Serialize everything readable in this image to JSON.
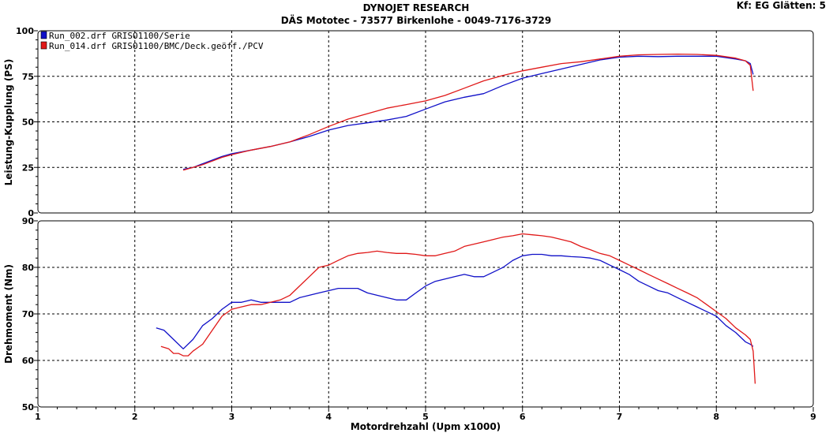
{
  "header": {
    "title": "DYNOJET RESEARCH",
    "subtitle": "DÄS Mototec - 73577 Birkenlohe  - 0049-7176-3729",
    "settings": "Kf: EG  Glätten: 5"
  },
  "colors": {
    "series_1": "#1010c8",
    "series_2": "#e01818"
  },
  "legend": [
    {
      "label": "Run_002.drf GRISO1100/Serie",
      "color": "#1010c8"
    },
    {
      "label": "Run_014.drf GRISO1100/BMC/Deck.geöff./PCV",
      "color": "#e01818"
    }
  ],
  "chart_data": [
    {
      "type": "line",
      "ylabel": "Leistung-Kupplung (PS)",
      "xlabel": "",
      "xlim": [
        1,
        9
      ],
      "ylim": [
        0,
        100
      ],
      "x_ticks": [
        1,
        2,
        3,
        4,
        5,
        6,
        7,
        8,
        9
      ],
      "y_ticks": [
        0,
        25,
        50,
        75,
        100
      ],
      "grid": true,
      "legend_position": "top-left",
      "series": [
        {
          "name": "Run_002.drf GRISO1100/Serie",
          "color": "#1010c8",
          "x": [
            2.5,
            2.6,
            2.7,
            2.8,
            2.9,
            3.0,
            3.2,
            3.4,
            3.6,
            3.8,
            4.0,
            4.2,
            4.4,
            4.6,
            4.8,
            5.0,
            5.2,
            5.4,
            5.6,
            5.8,
            6.0,
            6.2,
            6.4,
            6.6,
            6.8,
            7.0,
            7.2,
            7.4,
            7.6,
            7.8,
            8.0,
            8.2,
            8.3,
            8.35,
            8.38
          ],
          "y": [
            24,
            25,
            27,
            29,
            31,
            32.5,
            34.5,
            36.5,
            39,
            42,
            45.5,
            48,
            49.5,
            51,
            53,
            57,
            61,
            63.5,
            65.5,
            70,
            74,
            76.5,
            79,
            81.5,
            84,
            85.5,
            86,
            85.8,
            86,
            86,
            86,
            84.5,
            83.5,
            82,
            76
          ]
        },
        {
          "name": "Run_014.drf GRISO1100/BMC/Deck.geöff./PCV",
          "color": "#e01818",
          "x": [
            2.5,
            2.6,
            2.7,
            2.8,
            2.9,
            3.0,
            3.2,
            3.4,
            3.6,
            3.8,
            4.0,
            4.2,
            4.4,
            4.6,
            4.8,
            5.0,
            5.2,
            5.4,
            5.6,
            5.8,
            6.0,
            6.2,
            6.4,
            6.6,
            6.8,
            7.0,
            7.2,
            7.4,
            7.6,
            7.8,
            8.0,
            8.2,
            8.3,
            8.35,
            8.38
          ],
          "y": [
            23.5,
            25,
            26.5,
            28.5,
            30.5,
            32,
            34.5,
            36.5,
            39,
            43,
            47.5,
            51.5,
            54.5,
            57.5,
            59.5,
            61.5,
            64.5,
            68.5,
            72.5,
            75.5,
            78,
            80,
            82,
            83,
            84.5,
            86,
            86.8,
            87,
            87.2,
            87,
            86.5,
            85,
            83.5,
            81,
            67
          ]
        }
      ]
    },
    {
      "type": "line",
      "ylabel": "Drehmoment (Nm)",
      "xlabel": "Motordrehzahl (Upm x1000)",
      "xlim": [
        1,
        9
      ],
      "ylim": [
        50,
        90
      ],
      "x_ticks": [
        1,
        2,
        3,
        4,
        5,
        6,
        7,
        8,
        9
      ],
      "y_ticks": [
        50,
        60,
        70,
        80,
        90
      ],
      "grid": true,
      "series": [
        {
          "name": "Run_002.drf GRISO1100/Serie",
          "color": "#1010c8",
          "x": [
            2.22,
            2.3,
            2.4,
            2.5,
            2.6,
            2.7,
            2.8,
            2.9,
            3.0,
            3.1,
            3.2,
            3.3,
            3.4,
            3.5,
            3.6,
            3.7,
            3.8,
            3.9,
            4.0,
            4.1,
            4.2,
            4.3,
            4.4,
            4.5,
            4.6,
            4.7,
            4.8,
            4.9,
            5.0,
            5.1,
            5.2,
            5.3,
            5.4,
            5.5,
            5.6,
            5.7,
            5.8,
            5.9,
            6.0,
            6.1,
            6.2,
            6.3,
            6.4,
            6.5,
            6.6,
            6.7,
            6.8,
            6.9,
            7.0,
            7.1,
            7.2,
            7.3,
            7.4,
            7.5,
            7.6,
            7.7,
            7.8,
            7.9,
            8.0,
            8.1,
            8.2,
            8.3,
            8.35,
            8.38
          ],
          "y": [
            67,
            66.5,
            64.5,
            62.5,
            64.5,
            67.5,
            69,
            71,
            72.5,
            72.5,
            73,
            72.5,
            72.5,
            72.5,
            72.5,
            73.5,
            74,
            74.5,
            75,
            75.5,
            75.5,
            75.5,
            74.5,
            74,
            73.5,
            73,
            73,
            74.5,
            76,
            77,
            77.5,
            78,
            78.5,
            78,
            78,
            79,
            80,
            81.5,
            82.5,
            82.8,
            82.8,
            82.5,
            82.5,
            82.3,
            82.2,
            82,
            81.5,
            80.5,
            79.5,
            78.5,
            77,
            76,
            75,
            74.5,
            73.5,
            72.5,
            71.5,
            70.5,
            69.5,
            67.5,
            66,
            64,
            63.5,
            63
          ]
        },
        {
          "name": "Run_014.drf GRISO1100/BMC/Deck.geöff./PCV",
          "color": "#e01818",
          "x": [
            2.27,
            2.35,
            2.4,
            2.45,
            2.5,
            2.55,
            2.6,
            2.7,
            2.8,
            2.9,
            3.0,
            3.1,
            3.2,
            3.3,
            3.4,
            3.5,
            3.6,
            3.7,
            3.8,
            3.9,
            4.0,
            4.1,
            4.2,
            4.3,
            4.4,
            4.5,
            4.6,
            4.7,
            4.8,
            4.9,
            5.0,
            5.1,
            5.2,
            5.3,
            5.4,
            5.5,
            5.6,
            5.7,
            5.8,
            5.9,
            6.0,
            6.1,
            6.2,
            6.3,
            6.4,
            6.5,
            6.6,
            6.7,
            6.8,
            6.9,
            7.0,
            7.1,
            7.2,
            7.3,
            7.4,
            7.5,
            7.6,
            7.7,
            7.8,
            7.9,
            8.0,
            8.1,
            8.2,
            8.3,
            8.35,
            8.38,
            8.4
          ],
          "y": [
            63,
            62.5,
            61.5,
            61.5,
            61,
            61,
            62,
            63.5,
            66.5,
            69.5,
            71,
            71.5,
            72,
            72,
            72.5,
            73,
            74,
            76,
            78,
            80,
            80.5,
            81.5,
            82.5,
            83,
            83.2,
            83.5,
            83.2,
            83,
            83,
            82.8,
            82.5,
            82.5,
            83,
            83.5,
            84.5,
            85,
            85.5,
            86,
            86.5,
            86.8,
            87.2,
            87,
            86.8,
            86.5,
            86,
            85.5,
            84.5,
            83.8,
            83,
            82.5,
            81.5,
            80.5,
            79.5,
            78.5,
            77.5,
            76.5,
            75.5,
            74.5,
            73.5,
            72,
            70.5,
            69,
            67,
            65.5,
            64.5,
            62,
            55
          ]
        }
      ]
    }
  ]
}
